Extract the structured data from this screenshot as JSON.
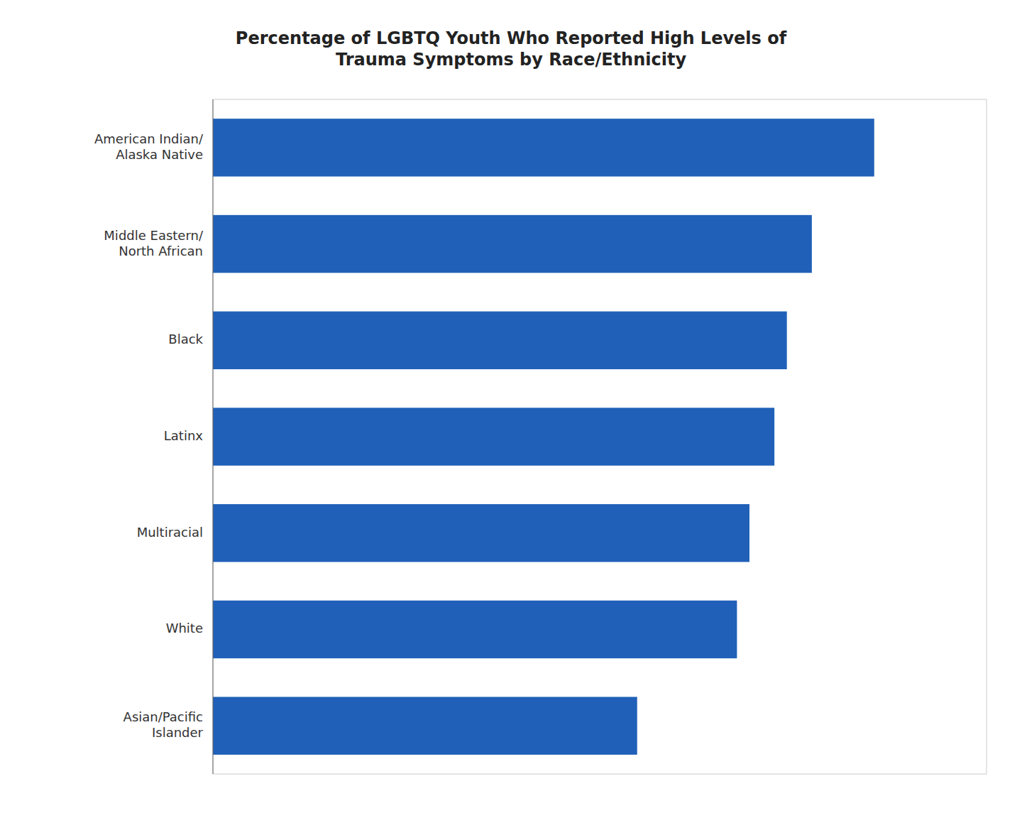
{
  "chart_data": {
    "type": "bar",
    "orientation": "horizontal",
    "title": "Percentage of LGBTQ Youth Who Reported High Levels of\nTrauma Symptoms by Race/Ethnicity",
    "categories": [
      "American Indian/\nAlaska Native",
      "Middle Eastern/\nNorth African",
      "Black",
      "Latinx",
      "Multiracial",
      "White",
      "Asian/Pacific\nIslander"
    ],
    "values": [
      53,
      48,
      46,
      45,
      43,
      42,
      34
    ],
    "color": "#2060b8",
    "xlim": [
      0,
      62
    ],
    "tick_labels": false,
    "grid": false
  }
}
